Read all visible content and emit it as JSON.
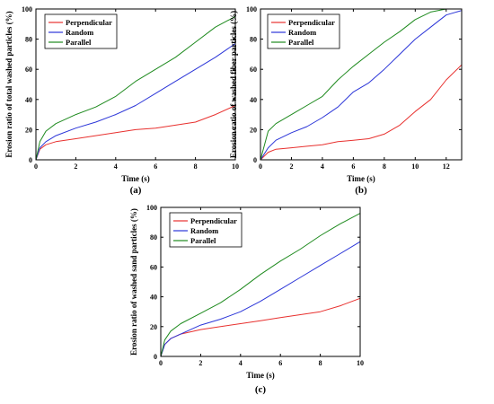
{
  "colors": {
    "Perpendicular": "#e8312f",
    "Random": "#2b35d8",
    "Parallel": "#1e8a1e"
  },
  "chart_data": [
    {
      "type": "line",
      "caption": "(a)",
      "xlabel": "Time (s)",
      "ylabel": "Erosion ratio of total washed particles (%)",
      "xlim": [
        0,
        10
      ],
      "ylim": [
        0,
        100
      ],
      "xticks": [
        0,
        2,
        4,
        6,
        8,
        10
      ],
      "yticks": [
        0,
        20,
        40,
        60,
        80,
        100
      ],
      "legend_position": "top-left",
      "series": [
        {
          "name": "Perpendicular",
          "x": [
            0,
            0.2,
            0.5,
            1,
            2,
            3,
            4,
            5,
            6,
            7,
            8,
            9,
            10
          ],
          "y": [
            0,
            7,
            10,
            12,
            14,
            16,
            18,
            20,
            21,
            23,
            25,
            30,
            36
          ]
        },
        {
          "name": "Random",
          "x": [
            0,
            0.2,
            0.5,
            1,
            2,
            3,
            4,
            5,
            6,
            7,
            8,
            9,
            10
          ],
          "y": [
            0,
            8,
            12,
            16,
            21,
            25,
            30,
            36,
            44,
            52,
            60,
            68,
            77
          ]
        },
        {
          "name": "Parallel",
          "x": [
            0,
            0.2,
            0.5,
            1,
            2,
            3,
            4,
            5,
            6,
            7,
            8,
            9,
            10
          ],
          "y": [
            0,
            12,
            19,
            24,
            30,
            35,
            42,
            52,
            60,
            68,
            78,
            88,
            95
          ]
        }
      ]
    },
    {
      "type": "line",
      "caption": "(b)",
      "xlabel": "Time (s)",
      "ylabel": "Erosion ratio of washed fiber particles (%)",
      "xlim": [
        0,
        13
      ],
      "ylim": [
        0,
        100
      ],
      "xticks": [
        0,
        2,
        4,
        6,
        8,
        10,
        12
      ],
      "yticks": [
        0,
        20,
        40,
        60,
        80,
        100
      ],
      "legend_position": "top-left",
      "series": [
        {
          "name": "Perpendicular",
          "x": [
            0,
            0.5,
            1,
            2,
            3,
            4,
            5,
            6,
            7,
            8,
            9,
            10,
            11,
            12,
            13
          ],
          "y": [
            0,
            5,
            7,
            8,
            9,
            10,
            12,
            13,
            14,
            17,
            23,
            32,
            40,
            53,
            63
          ]
        },
        {
          "name": "Random",
          "x": [
            0,
            0.5,
            1,
            2,
            3,
            4,
            5,
            6,
            7,
            8,
            9,
            10,
            11,
            12,
            13
          ],
          "y": [
            0,
            8,
            13,
            18,
            22,
            28,
            35,
            45,
            51,
            60,
            70,
            80,
            88,
            96,
            99
          ]
        },
        {
          "name": "Parallel",
          "x": [
            0,
            0.5,
            1,
            2,
            3,
            4,
            5,
            6,
            7,
            8,
            9,
            10,
            11,
            12,
            13
          ],
          "y": [
            0,
            19,
            24,
            30,
            36,
            42,
            53,
            62,
            70,
            78,
            85,
            93,
            98,
            100,
            100
          ]
        }
      ]
    },
    {
      "type": "line",
      "caption": "(c)",
      "xlabel": "Time (s)",
      "ylabel": "Erosion ratio of washed sand particles (%)",
      "xlim": [
        0,
        10
      ],
      "ylim": [
        0,
        100
      ],
      "xticks": [
        0,
        2,
        4,
        6,
        8,
        10
      ],
      "yticks": [
        0,
        20,
        40,
        60,
        80,
        100
      ],
      "legend_position": "top-left",
      "series": [
        {
          "name": "Perpendicular",
          "x": [
            0,
            0.2,
            0.5,
            1,
            2,
            3,
            4,
            5,
            6,
            7,
            8,
            9,
            10
          ],
          "y": [
            0,
            8,
            12,
            15,
            18,
            20,
            22,
            24,
            26,
            28,
            30,
            34,
            39
          ]
        },
        {
          "name": "Random",
          "x": [
            0,
            0.2,
            0.5,
            1,
            2,
            3,
            4,
            5,
            6,
            7,
            8,
            9,
            10
          ],
          "y": [
            0,
            8,
            12,
            15,
            21,
            25,
            30,
            37,
            45,
            53,
            61,
            69,
            77
          ]
        },
        {
          "name": "Parallel",
          "x": [
            0,
            0.2,
            0.5,
            1,
            2,
            3,
            4,
            5,
            6,
            7,
            8,
            9,
            10
          ],
          "y": [
            0,
            11,
            17,
            22,
            29,
            36,
            45,
            55,
            64,
            72,
            81,
            89,
            96
          ]
        }
      ]
    }
  ]
}
